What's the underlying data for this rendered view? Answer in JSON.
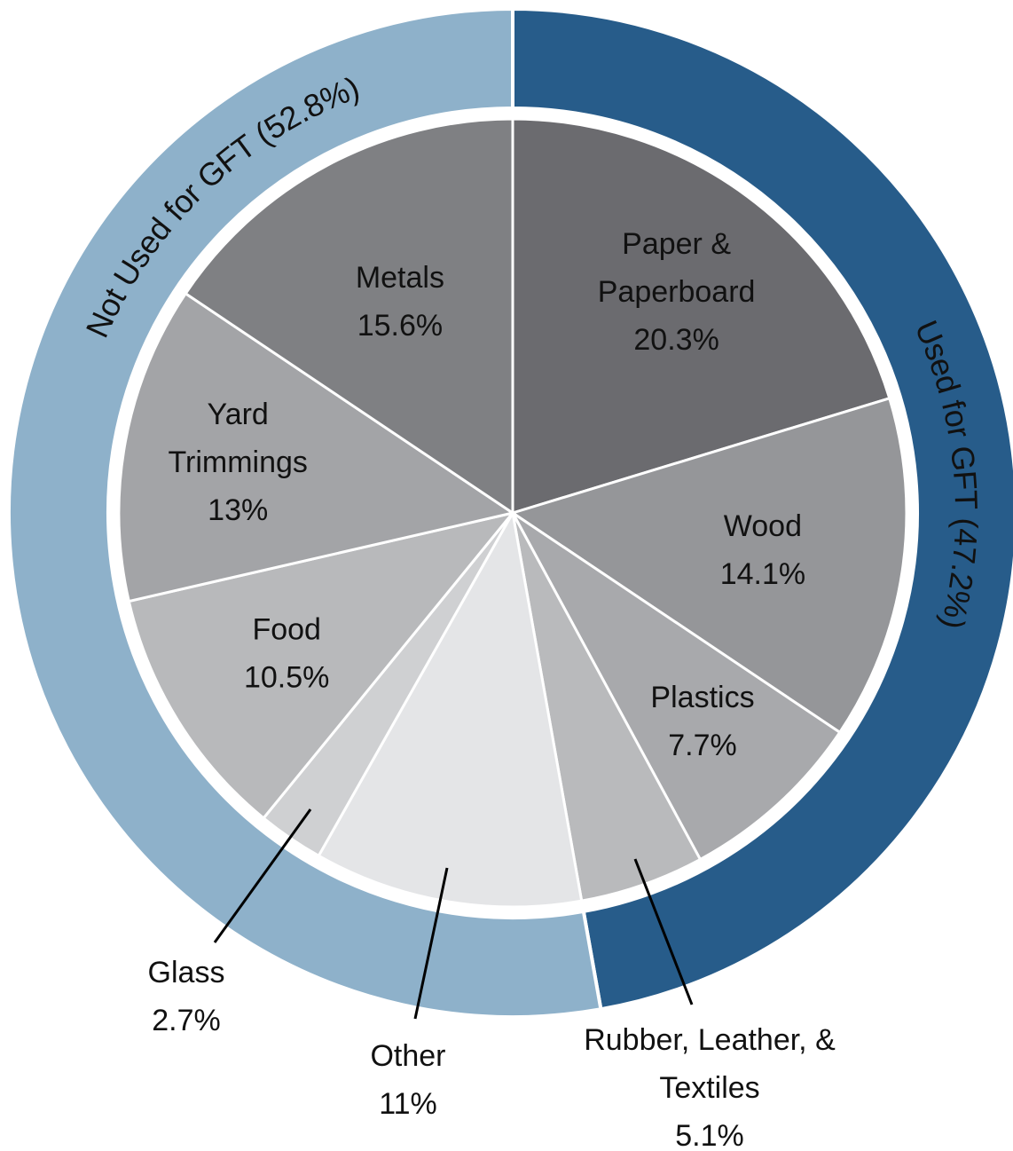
{
  "chart_data": {
    "type": "pie",
    "inner_series": [
      {
        "label": "Paper &\nPaperboard",
        "value_label": "20.3%",
        "value": 20.3,
        "color": "#6b6b6f"
      },
      {
        "label": "Wood",
        "value_label": "14.1%",
        "value": 14.1,
        "color": "#959699"
      },
      {
        "label": "Plastics",
        "value_label": "7.7%",
        "value": 7.7,
        "color": "#a8a9ac"
      },
      {
        "label": "Rubber, Leather, &\nTextiles",
        "value_label": "5.1%",
        "value": 5.1,
        "color": "#b9babc"
      },
      {
        "label": "Other",
        "value_label": "11%",
        "value": 11,
        "color": "#e4e5e7"
      },
      {
        "label": "Glass",
        "value_label": "2.7%",
        "value": 2.7,
        "color": "#cfd0d2"
      },
      {
        "label": "Food",
        "value_label": "10.5%",
        "value": 10.5,
        "color": "#b8b9bb"
      },
      {
        "label": "Yard\nTrimmings",
        "value_label": "13%",
        "value": 13,
        "color": "#a3a4a7"
      },
      {
        "label": "Metals",
        "value_label": "15.6%",
        "value": 15.6,
        "color": "#7f8083"
      }
    ],
    "outer_series": [
      {
        "label": "Used for GFT",
        "value_label": "(47.2%)",
        "value": 47.2,
        "color": "#275c8a"
      },
      {
        "label": "Not Used for GFT",
        "value_label": "(52.8%)",
        "value": 52.8,
        "color": "#8eb1ca"
      }
    ]
  }
}
